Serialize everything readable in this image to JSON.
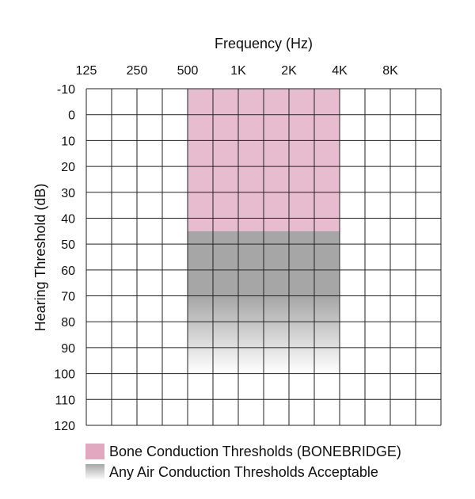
{
  "chart_data": {
    "type": "heatmap",
    "title": "",
    "xlabel": "Frequency (Hz)",
    "ylabel": "Hearing Threshold (dB)",
    "x_ticks": [
      "125",
      "250",
      "500",
      "1K",
      "2K",
      "4K",
      "8K"
    ],
    "y_ticks": [
      "-10",
      "0",
      "10",
      "20",
      "30",
      "40",
      "50",
      "60",
      "70",
      "80",
      "90",
      "100",
      "110",
      "120"
    ],
    "ylim": [
      -10,
      120
    ],
    "y_inverted": true,
    "x_columns": 14,
    "regions": [
      {
        "name": "Bone Conduction Thresholds (BONEBRIDGE)",
        "x_from": "500",
        "x_to": "4K",
        "y_from": -10,
        "y_to": 45,
        "color": "#e8bccf"
      },
      {
        "name": "Any Air Conduction Thresholds Acceptable",
        "x_from": "500",
        "x_to": "4K",
        "y_from": 45,
        "y_to": 100,
        "color": "#a6a6a6",
        "fade_from": 70,
        "fade_to": 100
      }
    ],
    "grid": true,
    "legend_position": "bottom-left"
  },
  "legend": {
    "items": [
      {
        "label": "Bone Conduction Thresholds (BONEBRIDGE)",
        "color": "#e2a8c0"
      },
      {
        "label": "Any Air Conduction Thresholds Acceptable",
        "color": "#a6a6a6"
      }
    ]
  }
}
